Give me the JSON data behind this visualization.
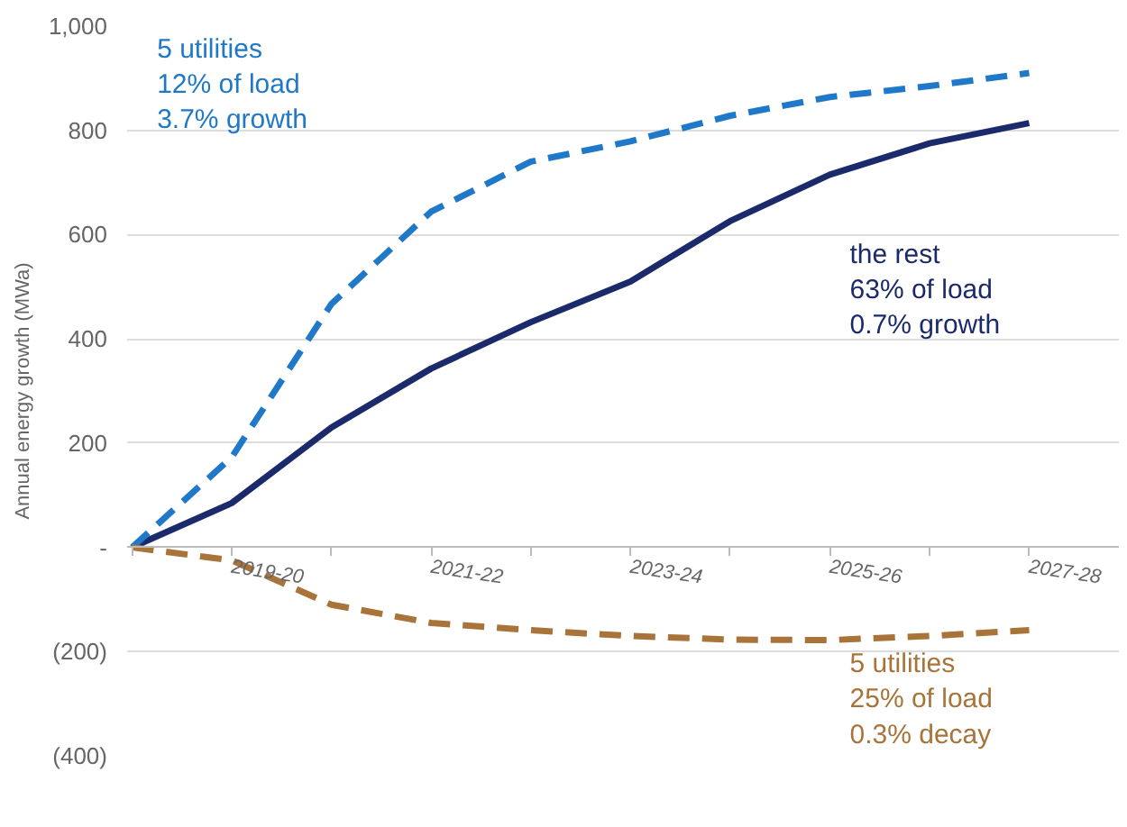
{
  "chart_data": {
    "type": "line",
    "ylabel": "Annual energy growth (MWa)",
    "categories": [
      null,
      "2019-20",
      null,
      "2021-22",
      null,
      "2023-24",
      null,
      "2025-26",
      null,
      "2027-28"
    ],
    "series": [
      {
        "name": "the rest\n63% of load\n0.7% growth",
        "color": "#1b2a6b",
        "line_style": "solid",
        "values": [
          0,
          85,
          230,
          343,
          432,
          510,
          626,
          715,
          775,
          814
        ]
      },
      {
        "name": "5 utilities\n12% of load\n3.7% growth",
        "color": "#1f78c8",
        "line_style": "dashed",
        "values": [
          0,
          173,
          467,
          644,
          740,
          779,
          828,
          864,
          885,
          910
        ]
      },
      {
        "name": "5 utilities\n25% of load\n0.3% decay",
        "color": "#a8743a",
        "line_style": "dashed",
        "values": [
          0,
          -25,
          -110,
          -145,
          -159,
          -170,
          -177,
          -178,
          -170,
          -159
        ]
      }
    ],
    "ylim": [
      -400,
      1000
    ],
    "yticks": [
      {
        "value": -400,
        "label": "(400)"
      },
      {
        "value": -200,
        "label": "(200)"
      },
      {
        "value": 0,
        "label": "-"
      },
      200,
      400,
      600,
      800,
      {
        "value": 1000,
        "label": "1,000"
      }
    ],
    "grid": "y",
    "legend": false,
    "marker": "none"
  }
}
